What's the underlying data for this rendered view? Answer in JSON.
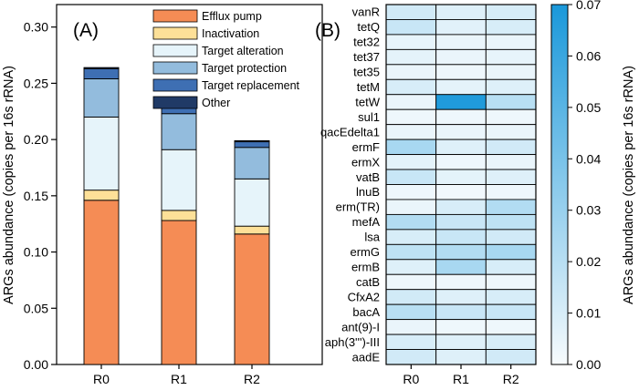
{
  "chart_data": [
    {
      "type": "bar",
      "stacked": true,
      "panel_label": "(A)",
      "ylabel": "ARGs abundance (copies per 16s rRNA)",
      "ylim": [
        0,
        0.32
      ],
      "yticks": [
        0.0,
        0.05,
        0.1,
        0.15,
        0.2,
        0.25,
        0.3
      ],
      "categories": [
        "R0",
        "R1",
        "R2"
      ],
      "legend_position": "top-right",
      "series": [
        {
          "name": "Efflux pump",
          "color": "#f58c55",
          "values": [
            0.146,
            0.128,
            0.116
          ]
        },
        {
          "name": "Inactivation",
          "color": "#fde098",
          "values": [
            0.009,
            0.009,
            0.007
          ]
        },
        {
          "name": "Target alteration",
          "color": "#e6f4fa",
          "values": [
            0.065,
            0.054,
            0.042
          ]
        },
        {
          "name": "Target protection",
          "color": "#93bcdd",
          "values": [
            0.034,
            0.032,
            0.028
          ]
        },
        {
          "name": "Target replacement",
          "color": "#3e6fb3",
          "values": [
            0.009,
            0.006,
            0.005
          ]
        },
        {
          "name": "Other",
          "color": "#203a66",
          "values": [
            0.001,
            0.001,
            0.001
          ]
        }
      ]
    },
    {
      "type": "heatmap",
      "panel_label": "(B)",
      "columns": [
        "R0",
        "R1",
        "R2"
      ],
      "rows": [
        "vanR",
        "tetQ",
        "tet32",
        "tet37",
        "tet35",
        "tetM",
        "tetW",
        "sul1",
        "qacEdelta1",
        "ermF",
        "ermX",
        "vatB",
        "lnuB",
        "erm(TR)",
        "mefA",
        "lsa",
        "ermG",
        "ermB",
        "catB",
        "CfxA2",
        "bacA",
        "ant(9)-I",
        "aph(3''')-III",
        "aadE"
      ],
      "values": [
        [
          0.012,
          0.008,
          0.01
        ],
        [
          0.015,
          0.007,
          0.01
        ],
        [
          0.005,
          0.004,
          0.004
        ],
        [
          0.006,
          0.004,
          0.005
        ],
        [
          0.004,
          0.003,
          0.004
        ],
        [
          0.01,
          0.006,
          0.008
        ],
        [
          0.004,
          0.068,
          0.02
        ],
        [
          0.003,
          0.003,
          0.003
        ],
        [
          0.004,
          0.004,
          0.004
        ],
        [
          0.025,
          0.008,
          0.012
        ],
        [
          0.006,
          0.003,
          0.004
        ],
        [
          0.015,
          0.006,
          0.008
        ],
        [
          0.003,
          0.002,
          0.003
        ],
        [
          0.004,
          0.01,
          0.022
        ],
        [
          0.022,
          0.015,
          0.018
        ],
        [
          0.01,
          0.015,
          0.012
        ],
        [
          0.018,
          0.022,
          0.025
        ],
        [
          0.008,
          0.025,
          0.01
        ],
        [
          0.003,
          0.003,
          0.003
        ],
        [
          0.012,
          0.008,
          0.01
        ],
        [
          0.02,
          0.015,
          0.015
        ],
        [
          0.004,
          0.003,
          0.003
        ],
        [
          0.01,
          0.008,
          0.01
        ],
        [
          0.012,
          0.008,
          0.012
        ]
      ],
      "colorbar": {
        "label": "ARGs abundance (copies per 16s rRNA)",
        "min": 0.0,
        "max": 0.07,
        "ticks": [
          "0.00",
          "0.01",
          "0.02",
          "0.03",
          "0.04",
          "0.05",
          "0.06",
          "0.07"
        ],
        "color_low": "#f7fbfd",
        "color_high": "#1a98da"
      }
    }
  ]
}
